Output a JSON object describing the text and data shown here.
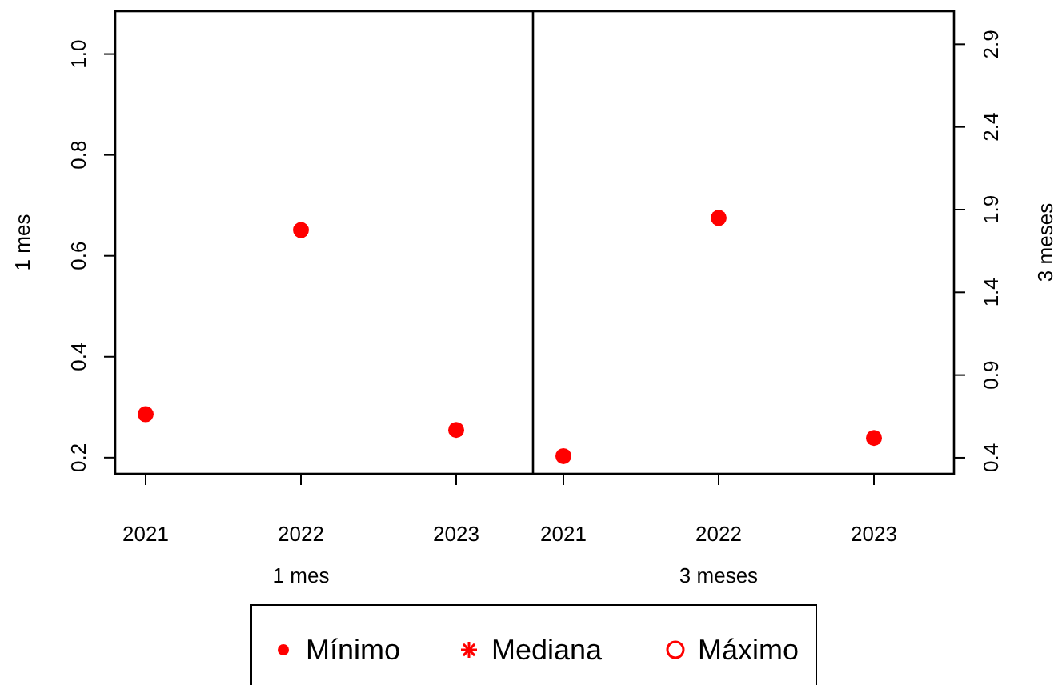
{
  "chart_data": [
    {
      "type": "scatter",
      "xlabel": "1 mes",
      "ylabel": "1 mes",
      "categories": [
        "2021",
        "2022",
        "2023"
      ],
      "ylim": [
        0.168,
        1.085
      ],
      "yticks": [
        0.2,
        0.4,
        0.6,
        0.8,
        {
          "value": 1,
          "label": "1.0"
        }
      ],
      "legend": "bottom",
      "series": [
        {
          "name": "Mínimo",
          "color": "#ff0000",
          "marker": "circle",
          "values": [
            0.286,
            0.651,
            0.255
          ]
        },
        {
          "name": "Mediana",
          "color": "#ff0000",
          "marker": "star",
          "values": [
            null,
            null,
            null
          ]
        },
        {
          "name": "Máximo",
          "color": "#ff0000",
          "marker": "circle",
          "values": [
            null,
            null,
            null
          ]
        }
      ]
    },
    {
      "type": "scatter",
      "xlabel": "3 meses",
      "y2label": "3 meses",
      "categories": [
        "2021",
        "2022",
        "2023"
      ],
      "y2lim": [
        0.303,
        3.1
      ],
      "y2ticks": [
        0.4,
        0.9,
        1.4,
        1.9,
        2.4,
        2.9
      ],
      "series": [
        {
          "color": "#ff0000",
          "marker": "circle",
          "axis": "y2",
          "values": [
            0.41,
            1.85,
            0.52
          ]
        }
      ]
    }
  ]
}
